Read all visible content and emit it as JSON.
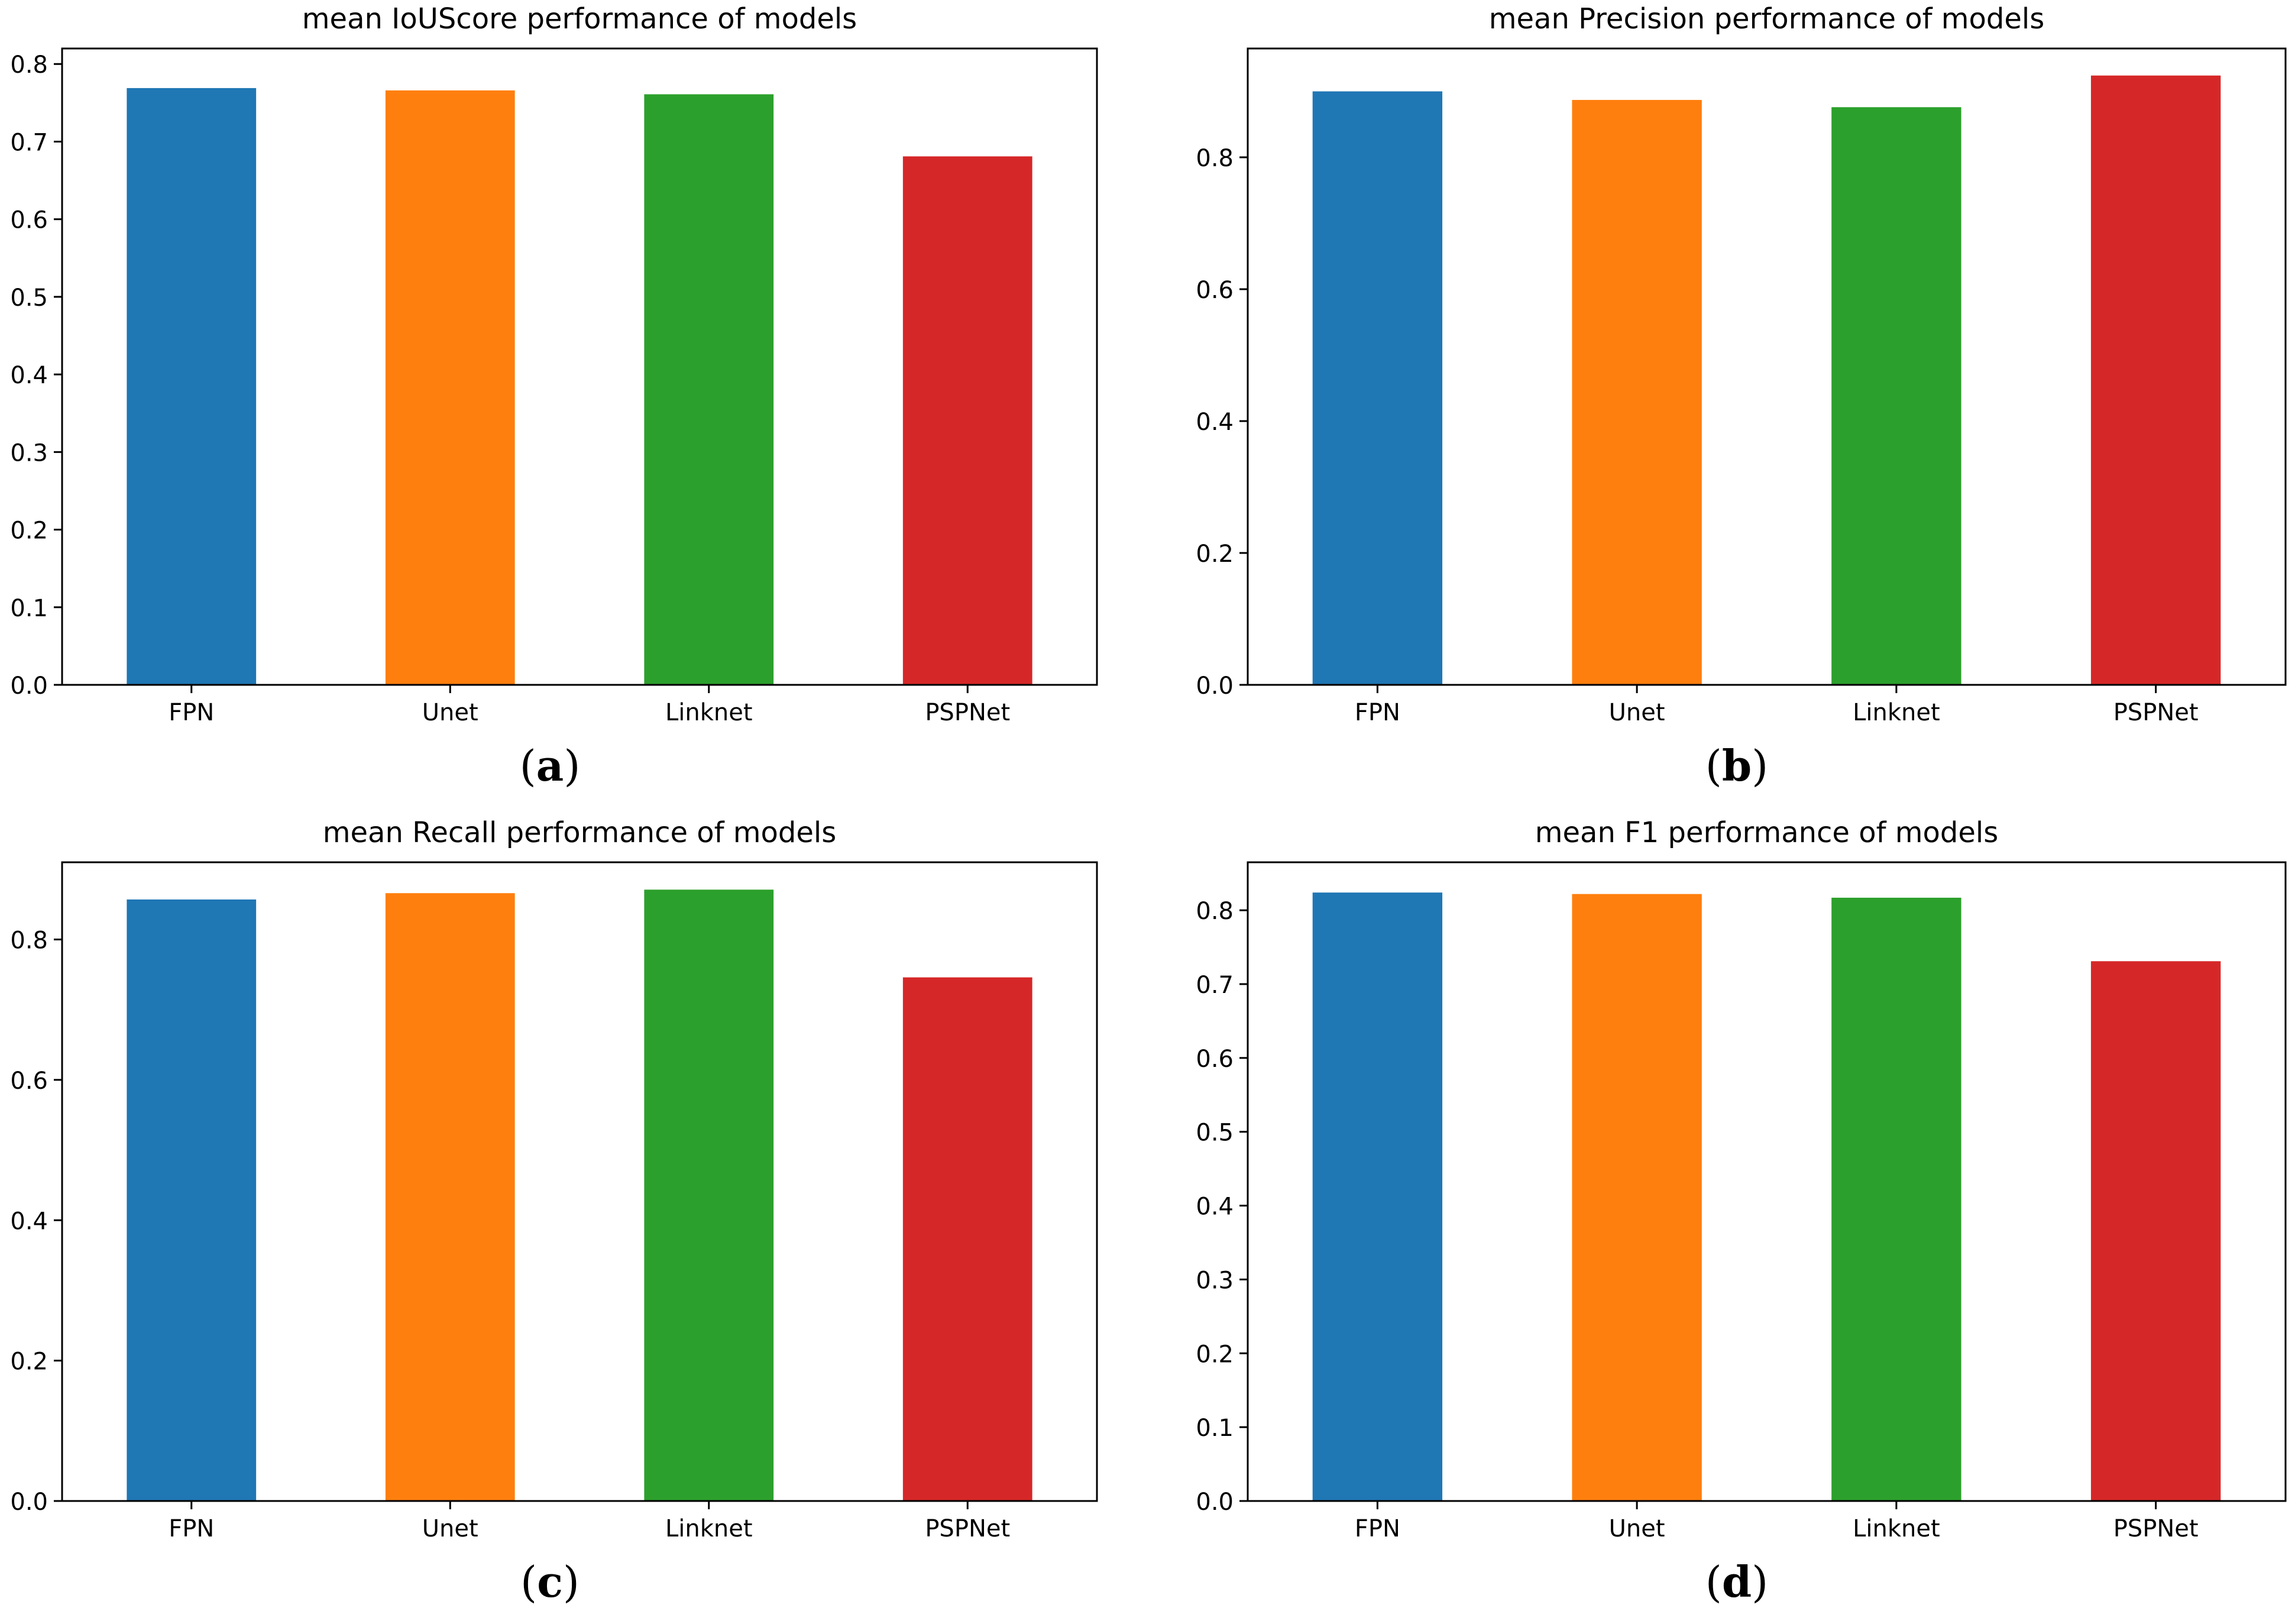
{
  "chart_data": [
    {
      "type": "bar",
      "panel_label": "(a)",
      "panel_letter": "a",
      "title": "mean IoUScore performance of models",
      "categories": [
        "FPN",
        "Unet",
        "Linknet",
        "PSPNet"
      ],
      "values": [
        0.769,
        0.766,
        0.761,
        0.681
      ],
      "ylim": [
        0,
        0.82
      ],
      "yticks": [
        0.0,
        0.1,
        0.2,
        0.3,
        0.4,
        0.5,
        0.6,
        0.7,
        0.8
      ],
      "ytick_labels": [
        "0.0",
        "0.1",
        "0.2",
        "0.3",
        "0.4",
        "0.5",
        "0.6",
        "0.7",
        "0.8"
      ],
      "colors": [
        "#1f77b4",
        "#ff7f0e",
        "#2ca02c",
        "#d62728"
      ],
      "xlabel": "",
      "ylabel": "",
      "grid": false
    },
    {
      "type": "bar",
      "panel_label": "(b)",
      "panel_letter": "b",
      "title": "mean Precision performance of models",
      "categories": [
        "FPN",
        "Unet",
        "Linknet",
        "PSPNet"
      ],
      "values": [
        0.9,
        0.887,
        0.876,
        0.924
      ],
      "ylim": [
        0,
        0.965
      ],
      "yticks": [
        0.0,
        0.2,
        0.4,
        0.6,
        0.8
      ],
      "ytick_labels": [
        "0.0",
        "0.2",
        "0.4",
        "0.6",
        "0.8"
      ],
      "colors": [
        "#1f77b4",
        "#ff7f0e",
        "#2ca02c",
        "#d62728"
      ],
      "xlabel": "",
      "ylabel": "",
      "grid": false
    },
    {
      "type": "bar",
      "panel_label": "(c)",
      "panel_letter": "c",
      "title": "mean Recall performance of models",
      "categories": [
        "FPN",
        "Unet",
        "Linknet",
        "PSPNet"
      ],
      "values": [
        0.857,
        0.866,
        0.871,
        0.746
      ],
      "ylim": [
        0,
        0.91
      ],
      "yticks": [
        0.0,
        0.2,
        0.4,
        0.6,
        0.8
      ],
      "ytick_labels": [
        "0.0",
        "0.2",
        "0.4",
        "0.6",
        "0.8"
      ],
      "colors": [
        "#1f77b4",
        "#ff7f0e",
        "#2ca02c",
        "#d62728"
      ],
      "xlabel": "",
      "ylabel": "",
      "grid": false
    },
    {
      "type": "bar",
      "panel_label": "(d)",
      "panel_letter": "d",
      "title": "mean F1 performance of models",
      "categories": [
        "FPN",
        "Unet",
        "Linknet",
        "PSPNet"
      ],
      "values": [
        0.824,
        0.822,
        0.817,
        0.731
      ],
      "ylim": [
        0,
        0.865
      ],
      "yticks": [
        0.0,
        0.1,
        0.2,
        0.3,
        0.4,
        0.5,
        0.6,
        0.7,
        0.8
      ],
      "ytick_labels": [
        "0.0",
        "0.1",
        "0.2",
        "0.3",
        "0.4",
        "0.5",
        "0.6",
        "0.7",
        "0.8"
      ],
      "colors": [
        "#1f77b4",
        "#ff7f0e",
        "#2ca02c",
        "#d62728"
      ],
      "xlabel": "",
      "ylabel": "",
      "grid": false
    }
  ]
}
